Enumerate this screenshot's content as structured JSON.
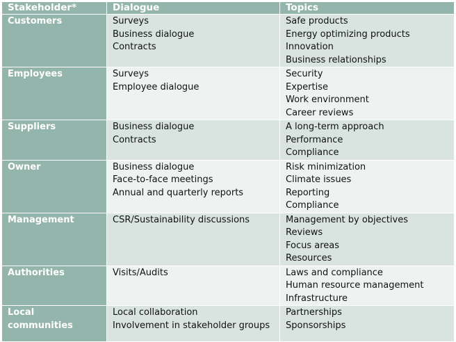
{
  "headers": {
    "stakeholder": "Stakeholder*",
    "dialogue": "Dialogue",
    "topics": "Topics"
  },
  "rows": [
    {
      "stakeholder": [
        "Customers"
      ],
      "dialogue": [
        "Surveys",
        "Business dialogue",
        "Contracts"
      ],
      "topics": [
        "Safe products",
        "Energy optimizing products",
        "Innovation",
        "Business relationships"
      ]
    },
    {
      "stakeholder": [
        "Employees"
      ],
      "dialogue": [
        "Surveys",
        "Employee dialogue"
      ],
      "topics": [
        "Security",
        "Expertise",
        "Work environment",
        "Career reviews"
      ]
    },
    {
      "stakeholder": [
        "Suppliers"
      ],
      "dialogue": [
        "Business dialogue",
        "Contracts"
      ],
      "topics": [
        "A long-term approach",
        "Performance",
        "Compliance"
      ]
    },
    {
      "stakeholder": [
        "Owner"
      ],
      "dialogue": [
        "Business dialogue",
        "Face-to-face meetings",
        "Annual and quarterly reports"
      ],
      "topics": [
        "Risk minimization",
        "Climate issues",
        "Reporting",
        "Compliance"
      ]
    },
    {
      "stakeholder": [
        "Management"
      ],
      "dialogue": [
        "CSR/Sustainability discussions"
      ],
      "topics": [
        "Management by objectives",
        "Reviews",
        "Focus areas",
        "Resources"
      ]
    },
    {
      "stakeholder": [
        "Authorities"
      ],
      "dialogue": [
        "Visits/Audits"
      ],
      "topics": [
        "Laws and compliance",
        "Human resource management",
        "Infrastructure"
      ]
    },
    {
      "stakeholder": [
        "Local",
        "communities"
      ],
      "dialogue": [
        "Local collaboration",
        "Involvement in stakeholder groups"
      ],
      "topics": [
        "Partnerships",
        "Sponsorships"
      ]
    }
  ]
}
